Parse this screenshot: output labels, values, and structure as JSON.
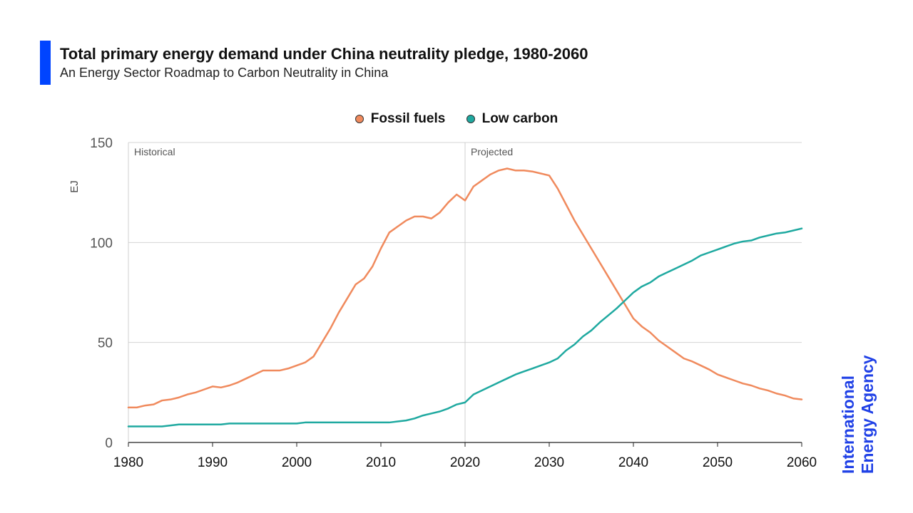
{
  "header": {
    "title": "Total primary energy demand under China neutrality pledge, 1980-2060",
    "subtitle": "An Energy Sector Roadmap to Carbon Neutrality in China"
  },
  "logo": {
    "line1": "International",
    "line2": "Energy Agency",
    "color": "#1f40e6"
  },
  "colors": {
    "accent": "#0044ff",
    "fossil": "#f08a5d",
    "low_carbon": "#1fa9a0"
  },
  "chart_data": {
    "type": "line",
    "title": "Total primary energy demand under China neutrality pledge, 1980-2060",
    "subtitle": "An Energy Sector Roadmap to Carbon Neutrality in China",
    "xlabel": "",
    "ylabel": "EJ",
    "xlim": [
      1980,
      2060
    ],
    "ylim": [
      0,
      150
    ],
    "xticks": [
      1980,
      1990,
      2000,
      2010,
      2020,
      2030,
      2040,
      2050,
      2060
    ],
    "yticks": [
      0,
      50,
      100,
      150
    ],
    "grid": "horizontal",
    "legend_position": "top-center",
    "annotations": [
      {
        "text": "Historical",
        "x": 1980
      },
      {
        "text": "Projected",
        "x": 2020
      }
    ],
    "divider_x": 2020,
    "x": [
      1980,
      1981,
      1982,
      1983,
      1984,
      1985,
      1986,
      1987,
      1988,
      1989,
      1990,
      1991,
      1992,
      1993,
      1994,
      1995,
      1996,
      1997,
      1998,
      1999,
      2000,
      2001,
      2002,
      2003,
      2004,
      2005,
      2006,
      2007,
      2008,
      2009,
      2010,
      2011,
      2012,
      2013,
      2014,
      2015,
      2016,
      2017,
      2018,
      2019,
      2020,
      2021,
      2022,
      2023,
      2024,
      2025,
      2026,
      2027,
      2028,
      2029,
      2030,
      2031,
      2032,
      2033,
      2034,
      2035,
      2036,
      2037,
      2038,
      2039,
      2040,
      2041,
      2042,
      2043,
      2044,
      2045,
      2046,
      2047,
      2048,
      2049,
      2050,
      2051,
      2052,
      2053,
      2054,
      2055,
      2056,
      2057,
      2058,
      2059,
      2060
    ],
    "series": [
      {
        "name": "Fossil fuels",
        "color": "#f08a5d",
        "values": [
          17.5,
          17.5,
          18.5,
          19,
          21,
          21.5,
          22.5,
          24,
          25,
          26.5,
          28,
          27.5,
          28.5,
          30,
          32,
          34,
          36,
          36,
          36,
          37,
          38.5,
          40,
          43,
          50,
          57,
          65,
          72,
          79,
          82,
          88,
          97,
          105,
          108,
          111,
          113,
          113,
          112,
          115,
          120,
          124,
          121,
          128,
          131,
          134,
          136,
          137,
          136,
          136,
          135.5,
          134.5,
          133.5,
          127,
          119,
          111,
          104,
          97,
          90,
          83,
          76,
          69,
          62,
          58,
          55,
          51,
          48,
          45,
          42,
          40.5,
          38.5,
          36.5,
          34,
          32.5,
          31,
          29.5,
          28.5,
          27,
          26,
          24.5,
          23.5,
          22,
          21.5
        ]
      },
      {
        "name": "Low carbon",
        "color": "#1fa9a0",
        "values": [
          8,
          8,
          8,
          8,
          8,
          8.5,
          9,
          9,
          9,
          9,
          9,
          9,
          9.5,
          9.5,
          9.5,
          9.5,
          9.5,
          9.5,
          9.5,
          9.5,
          9.5,
          10,
          10,
          10,
          10,
          10,
          10,
          10,
          10,
          10,
          10,
          10,
          10.5,
          11,
          12,
          13.5,
          14.5,
          15.5,
          17,
          19,
          20,
          24,
          26,
          28,
          30,
          32,
          34,
          35.5,
          37,
          38.5,
          40,
          42,
          46,
          49,
          53,
          56,
          60,
          63.5,
          67,
          71,
          75,
          78,
          80,
          83,
          85,
          87,
          89,
          91,
          93.5,
          95,
          96.5,
          98,
          99.5,
          100.5,
          101,
          102.5,
          103.5,
          104.5,
          105,
          106,
          107
        ]
      }
    ]
  }
}
